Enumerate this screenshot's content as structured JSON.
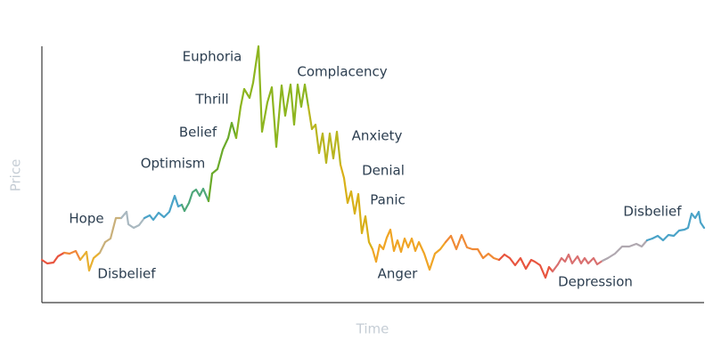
{
  "chart_data": {
    "type": "line",
    "y_label": "Price",
    "x_label": "Time",
    "xlim": [
      0,
      743
    ],
    "ylim": [
      0,
      290
    ],
    "annotations": [
      "Euphoria",
      "Complacency",
      "Thrill",
      "Belief",
      "Anxiety",
      "Optimism",
      "Denial",
      "Panic",
      "Hope",
      "Disbelief",
      "Anger",
      "Depression",
      "Disbelief"
    ],
    "series": [
      {
        "color": "#e8553f",
        "x": [
          0,
          6,
          13,
          18,
          25
        ],
        "values": [
          48,
          44,
          45,
          52,
          56
        ]
      },
      {
        "color": "#f0883a",
        "x": [
          31,
          38,
          43
        ],
        "values": [
          55,
          58,
          48
        ]
      },
      {
        "color": "#e8b030",
        "x": [
          50,
          53,
          58,
          65
        ],
        "values": [
          57,
          36,
          50,
          56
        ]
      },
      {
        "color": "#c9b07a",
        "x": [
          71,
          77,
          83,
          89
        ],
        "values": [
          68,
          72,
          95,
          95
        ]
      },
      {
        "color": "#a9b8c0",
        "x": [
          95,
          97,
          103,
          109,
          115
        ],
        "values": [
          102,
          88,
          84,
          87,
          95
        ]
      },
      {
        "color": "#4aa3c8",
        "x": [
          121,
          125,
          131,
          137,
          143,
          149,
          153,
          157
        ],
        "values": [
          98,
          93,
          101,
          96,
          102,
          120,
          108,
          110
        ]
      },
      {
        "color": "#4ea77a",
        "x": [
          160,
          165,
          169,
          173,
          177,
          181,
          187
        ],
        "values": [
          103,
          112,
          124,
          127,
          120,
          128,
          114
        ]
      },
      {
        "color": "#6aaa2a",
        "x": [
          191,
          197,
          203,
          209,
          213,
          218
        ],
        "values": [
          145,
          150,
          172,
          185,
          202,
          185
        ]
      },
      {
        "color": "#8db51f",
        "x": [
          223,
          227,
          233,
          237,
          243,
          247,
          253,
          258,
          263,
          269,
          273,
          279,
          283,
          287,
          291,
          295,
          299
        ],
        "values": [
          220,
          240,
          230,
          247,
          288,
          192,
          225,
          242,
          175,
          244,
          210,
          245,
          200,
          245,
          220,
          245,
          220
        ]
      },
      {
        "color": "#b8b51f",
        "x": [
          303,
          307,
          311,
          315,
          319,
          323,
          327,
          331,
          335
        ],
        "values": [
          195,
          200,
          168,
          190,
          157,
          190,
          162,
          192,
          155
        ]
      },
      {
        "color": "#d8b018",
        "x": [
          339,
          343,
          347,
          351,
          355,
          359,
          363,
          367,
          371
        ],
        "values": [
          140,
          112,
          125,
          100,
          122,
          78,
          97,
          68,
          60
        ]
      },
      {
        "color": "#f0a525",
        "x": [
          375,
          379,
          383,
          387,
          391,
          395,
          399,
          403,
          407,
          411,
          415,
          419,
          423,
          429,
          435,
          441,
          447,
          453
        ],
        "values": [
          46,
          65,
          60,
          73,
          82,
          58,
          70,
          57,
          72,
          62,
          72,
          58,
          68,
          55,
          37,
          55,
          60,
          68
        ]
      },
      {
        "color": "#f08a35",
        "x": [
          459,
          465,
          471,
          477,
          483,
          489,
          495,
          501,
          507,
          513
        ],
        "values": [
          75,
          60,
          76,
          62,
          60,
          60,
          50,
          55,
          50,
          48
        ]
      },
      {
        "color": "#e8553f",
        "x": [
          519,
          525,
          531,
          537,
          543,
          549,
          553,
          559,
          565,
          569,
          573
        ],
        "values": [
          54,
          50,
          42,
          50,
          38,
          48,
          46,
          42,
          28,
          40,
          35
        ]
      },
      {
        "color": "#d97070",
        "x": [
          579,
          583,
          587,
          591,
          595,
          601,
          605,
          609,
          613,
          619,
          623,
          629
        ],
        "values": [
          43,
          50,
          46,
          54,
          44,
          52,
          44,
          50,
          44,
          50,
          43,
          47
        ]
      },
      {
        "color": "#b0a8b0",
        "x": [
          635,
          643,
          651,
          659,
          667,
          673,
          679
        ],
        "values": [
          50,
          55,
          63,
          63,
          66,
          63,
          70
        ]
      },
      {
        "color": "#4aa3c8",
        "x": [
          685,
          691,
          697,
          703,
          709,
          715,
          721,
          725,
          729,
          733,
          737,
          739,
          743
        ],
        "values": [
          72,
          75,
          70,
          76,
          75,
          81,
          82,
          84,
          100,
          95,
          102,
          90,
          84
        ]
      }
    ]
  }
}
